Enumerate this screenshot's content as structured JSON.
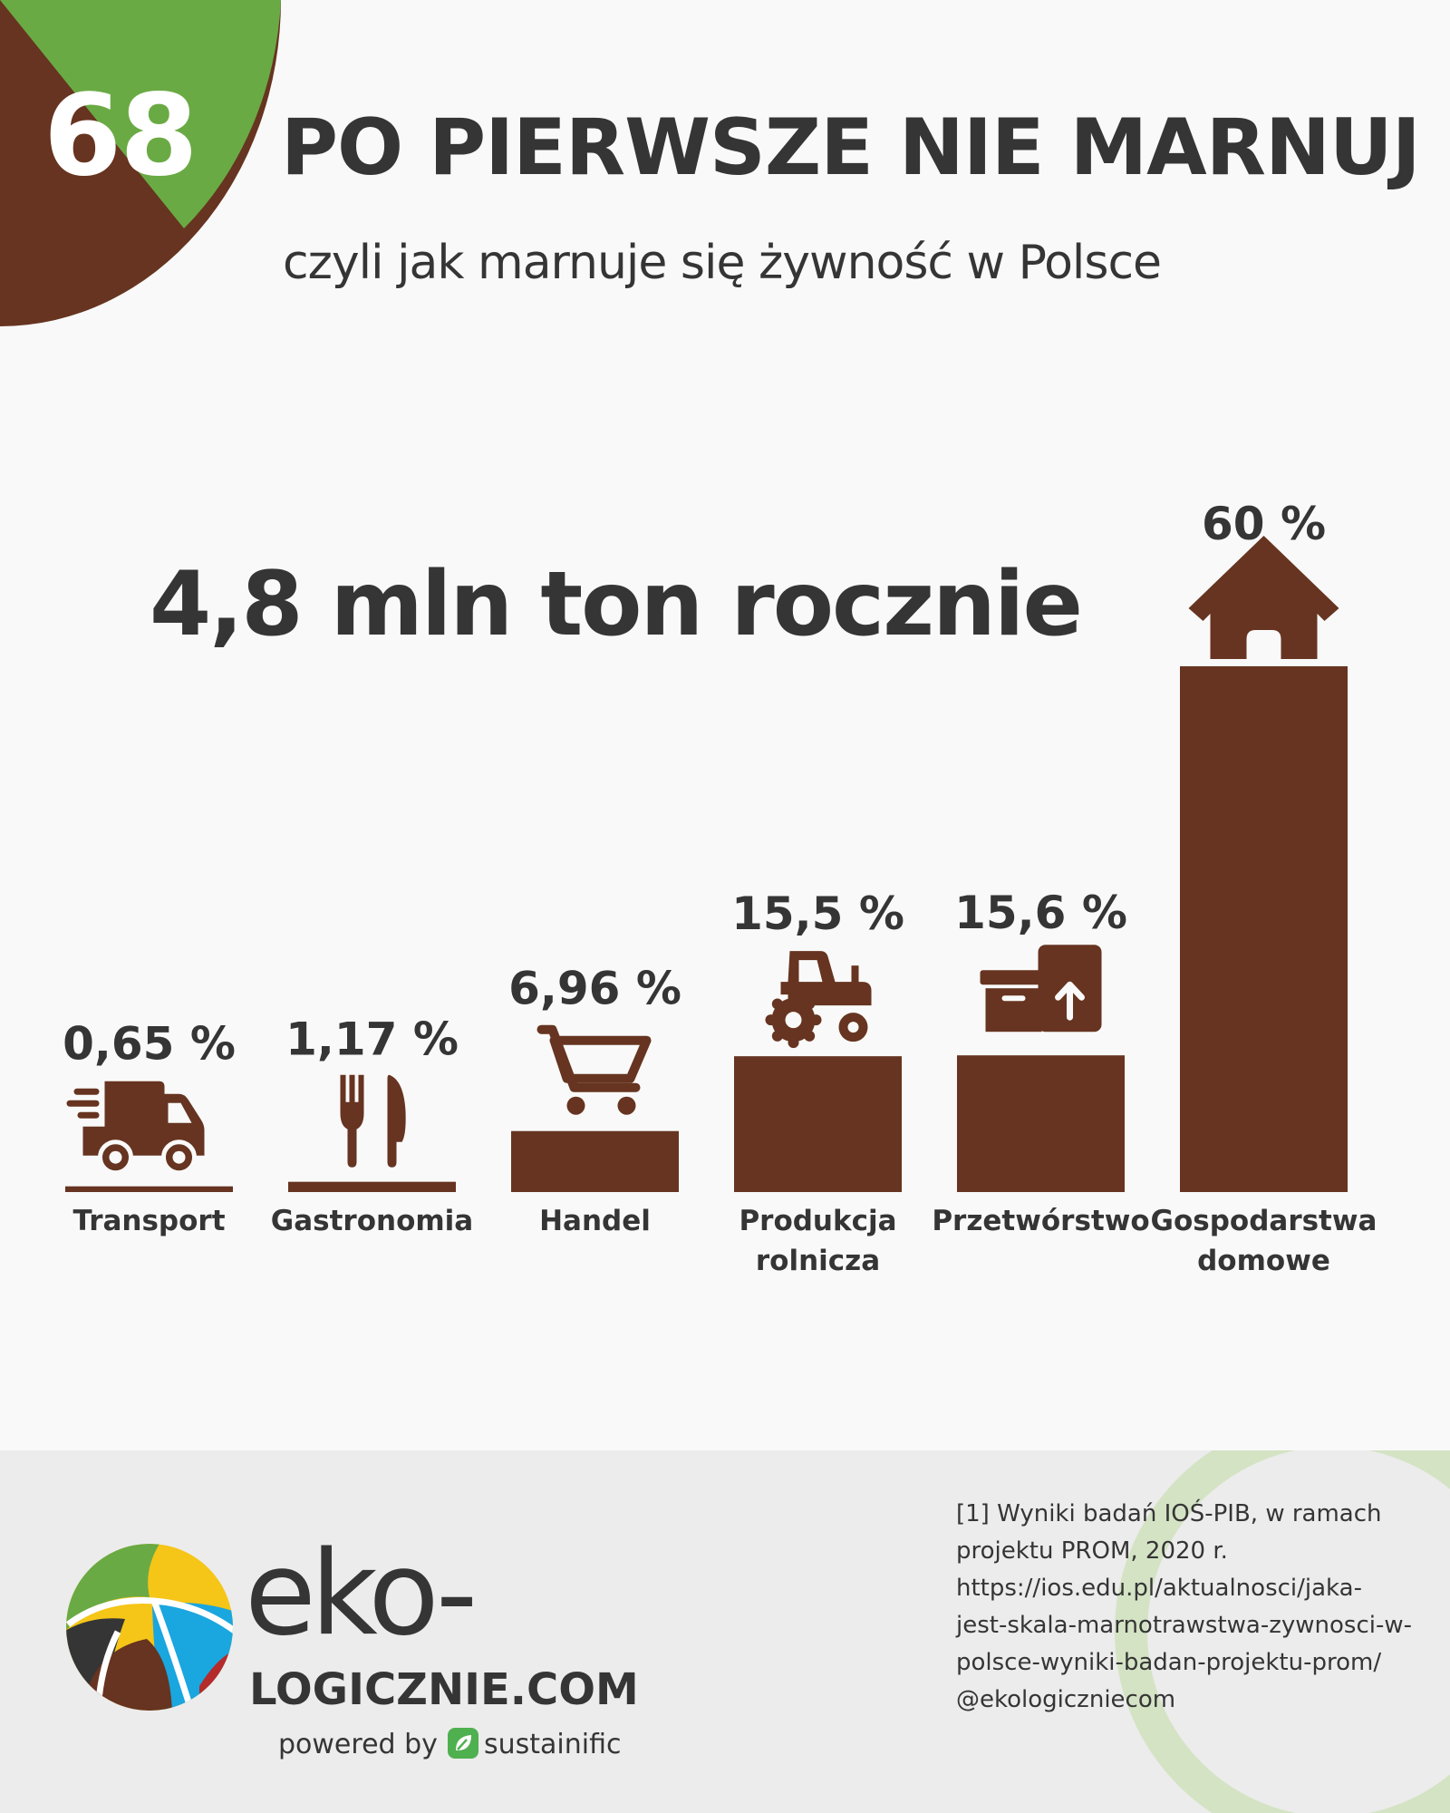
{
  "header": {
    "issue_number": "68",
    "title": "PO PIERWSZE NIE MARNUJ",
    "subtitle": "czyli jak marnuje się żywność w Polsce"
  },
  "headline": "4,8 mln ton rocznie",
  "colors": {
    "brown": "#663420",
    "green": "#6aaa44",
    "text": "#353535",
    "footer_bg": "#ececec",
    "ring": "#d4e3c4"
  },
  "chart_data": {
    "type": "bar",
    "categories": [
      "Transport",
      "Gastronomia",
      "Handel",
      "Produkcja rolnicza",
      "Przetwórstwo",
      "Gospodarstwa domowe"
    ],
    "values": [
      0.65,
      1.17,
      6.96,
      15.5,
      15.6,
      60
    ],
    "value_labels": [
      "0,65 %",
      "1,17 %",
      "6,96 %",
      "15,5 %",
      "15,6 %",
      "60 %"
    ],
    "category_lines": [
      [
        "Transport"
      ],
      [
        "Gastronomia"
      ],
      [
        "Handel"
      ],
      [
        "Produkcja",
        "rolnicza"
      ],
      [
        "Przetwórstwo"
      ],
      [
        "Gospodarstwa",
        "domowe"
      ]
    ],
    "icons": [
      "delivery-truck-icon",
      "fork-knife-icon",
      "shopping-cart-icon",
      "tractor-icon",
      "box-icon",
      "house-icon"
    ],
    "unit": "%",
    "ylim": [
      0,
      60
    ],
    "grid": false,
    "color": "#663420"
  },
  "footer": {
    "logo_word": "eko-",
    "logo_domain": "LOGICZNIE.COM",
    "powered_by": "powered by",
    "partner": "sustainific",
    "source_lines": [
      "[1] Wyniki badań IOŚ-PIB, w ramach",
      "projektu PROM, 2020 r.",
      "https://ios.edu.pl/aktualnosci/jaka-",
      "jest-skala-marnotrawstwa-zywnosci-w-",
      "polsce-wyniki-badan-projektu-prom/",
      "@ekologiczniecom"
    ]
  }
}
